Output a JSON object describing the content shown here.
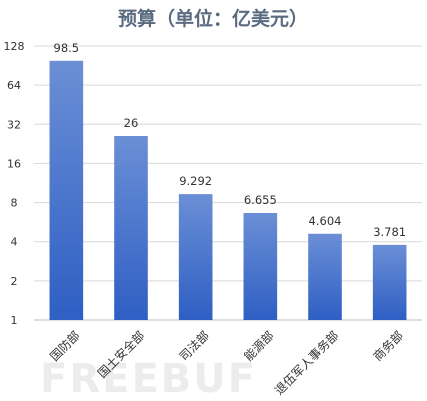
{
  "chart_data": {
    "type": "bar",
    "title": "预算（单位：亿美元）",
    "y_scale": "log2",
    "ylim": [
      1,
      128
    ],
    "y_ticks": [
      "1",
      "2",
      "4",
      "8",
      "16",
      "32",
      "64",
      "128"
    ],
    "categories": [
      "国防部",
      "国土安全部",
      "司法部",
      "能源部",
      "退伍军人事务部",
      "商务部"
    ],
    "values": [
      98.5,
      26,
      9.292,
      6.655,
      4.604,
      3.781
    ],
    "value_labels": [
      "98.5",
      "26",
      "9.292",
      "6.655",
      "4.604",
      "3.781"
    ],
    "grid": true,
    "legend": "none",
    "bar_color_top": "#6b8fd6",
    "bar_color_bottom": "#2f5fc4"
  },
  "watermark": "FREEBUF"
}
